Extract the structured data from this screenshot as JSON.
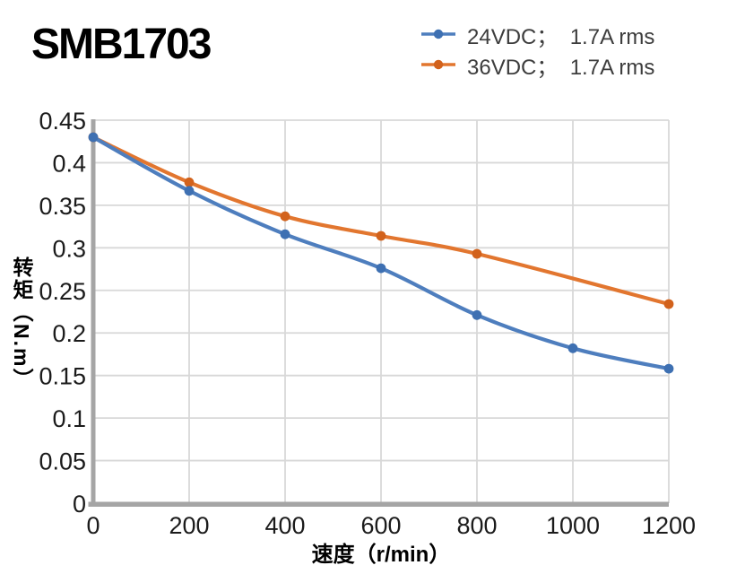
{
  "title": "SMB1703",
  "colors": {
    "background": "#ffffff",
    "grid": "#d8d8d8",
    "axis": "#a5a5a5",
    "tick_text": "#1b1b1b",
    "legend_text": "#3d3d3d",
    "title_text": "#000000"
  },
  "chart_data": {
    "type": "line",
    "title": "SMB1703",
    "xlabel": "速度（r/min）",
    "ylabel": "转矩（N.m）",
    "xlim": [
      0,
      1200
    ],
    "ylim": [
      0,
      0.45
    ],
    "x_ticks": [
      0,
      200,
      400,
      600,
      800,
      1000,
      1200
    ],
    "x_tick_labels": [
      "0",
      "200",
      "400",
      "600",
      "800",
      "1000",
      "1200"
    ],
    "y_ticks": [
      0,
      0.05,
      0.1,
      0.15,
      0.2,
      0.25,
      0.3,
      0.35,
      0.4,
      0.45
    ],
    "y_tick_labels": [
      "0",
      "0.05",
      "0.1",
      "0.15",
      "0.2",
      "0.25",
      "0.3",
      "0.35",
      "0.4",
      "0.45"
    ],
    "grid": true,
    "legend_position": "top-right",
    "series": [
      {
        "name": "24VDC；  1.7A rms",
        "line_color": "#4e7ebe",
        "marker_color": "#3e70b2",
        "smooth": true,
        "x": [
          0,
          200,
          400,
          600,
          800,
          1000,
          1200
        ],
        "y": [
          0.43,
          0.367,
          0.316,
          0.276,
          0.221,
          0.182,
          0.158
        ]
      },
      {
        "name": "36VDC；  1.7A rms",
        "line_color": "#e2762f",
        "marker_color": "#d2621c",
        "smooth": true,
        "x": [
          0,
          200,
          400,
          600,
          800,
          1200
        ],
        "y": [
          0.43,
          0.377,
          0.337,
          0.314,
          0.293,
          0.234
        ]
      }
    ]
  }
}
